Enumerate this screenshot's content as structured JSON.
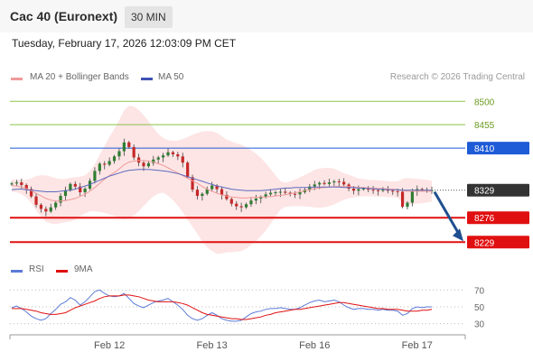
{
  "header": {
    "instrument": "Cac 40 (Euronext)",
    "timeframe": "30 MIN",
    "timestamp": "Tuesday, February 17, 2026 12:03:09 PM CET"
  },
  "legend": {
    "ma20": "MA 20 + Bollinger Bands",
    "ma50": "MA 50",
    "credit": "Research © 2026 Trading Central"
  },
  "rsi_legend": {
    "rsi": "RSI",
    "ma": "9MA"
  },
  "colors": {
    "candle_up": "#2e7d32",
    "candle_down": "#c62828",
    "bollinger_fill": "#fde0e0",
    "ma20": "#ef9a9a",
    "ma50": "#5c6bc0",
    "target_green": "#8bc34a",
    "pivot_blue": "#1e5bd6",
    "support_red": "#e01010",
    "arrow": "#1f4f8f",
    "last_price_bg": "#333333"
  },
  "chart_data": [
    {
      "type": "candlestick",
      "title": "",
      "x_ticks": [
        "Feb 12",
        "Feb 13",
        "Feb 16",
        "Feb 17"
      ],
      "ylim": [
        8200,
        8530
      ],
      "levels": [
        {
          "value": 8500,
          "label": "8500",
          "role": "resistance"
        },
        {
          "value": 8455,
          "label": "8455",
          "role": "resistance"
        },
        {
          "value": 8410,
          "label": "8410",
          "role": "pivot"
        },
        {
          "value": 8276,
          "label": "8276",
          "role": "support"
        },
        {
          "value": 8229,
          "label": "8229",
          "role": "support"
        }
      ],
      "last_price": {
        "value": 8329,
        "label": "8329"
      },
      "projection": {
        "from": 8331,
        "to": 8229,
        "direction": "down"
      },
      "close": [
        8342,
        8344,
        8339,
        8331,
        8317,
        8301,
        8293,
        8288,
        8296,
        8305,
        8318,
        8329,
        8341,
        8336,
        8325,
        8332,
        8347,
        8366,
        8380,
        8378,
        8385,
        8394,
        8404,
        8421,
        8412,
        8392,
        8382,
        8375,
        8381,
        8388,
        8392,
        8396,
        8402,
        8398,
        8394,
        8382,
        8354,
        8330,
        8318,
        8322,
        8331,
        8338,
        8331,
        8320,
        8312,
        8303,
        8298,
        8296,
        8302,
        8309,
        8313,
        8316,
        8321,
        8324,
        8325,
        8326,
        8324,
        8322,
        8321,
        8325,
        8330,
        8336,
        8340,
        8343,
        8341,
        8344,
        8346,
        8345,
        8340,
        8332,
        8328,
        8331,
        8332,
        8330,
        8329,
        8328,
        8330,
        8328,
        8327,
        8326,
        8297,
        8305,
        8327,
        8331,
        8329,
        8329,
        8329
      ],
      "ma20": [
        8338,
        8337,
        8335,
        8332,
        8328,
        8323,
        8318,
        8313,
        8310,
        8308,
        8308,
        8309,
        8311,
        8313,
        8317,
        8321,
        8327,
        8334,
        8342,
        8350,
        8357,
        8363,
        8370,
        8378,
        8383,
        8385,
        8386,
        8386,
        8385,
        8383,
        8380,
        8377,
        8372,
        8367,
        8362,
        8357,
        8352,
        8347,
        8342,
        8336,
        8331,
        8327,
        8323,
        8320,
        8318,
        8316,
        8315,
        8314,
        8314,
        8315,
        8315,
        8316,
        8316,
        8317,
        8318,
        8319,
        8320,
        8322,
        8324,
        8326,
        8328,
        8330,
        8332,
        8333,
        8334,
        8335,
        8336,
        8336,
        8336,
        8336,
        8335,
        8334,
        8334,
        8333,
        8333,
        8332,
        8332,
        8331,
        8331,
        8330,
        8328,
        8327,
        8327,
        8327,
        8327,
        8327,
        8327
      ],
      "ma50": [
        8330,
        8331,
        8331,
        8330,
        8329,
        8328,
        8327,
        8326,
        8326,
        8326,
        8327,
        8328,
        8329,
        8331,
        8334,
        8337,
        8340,
        8344,
        8348,
        8352,
        8356,
        8359,
        8362,
        8365,
        8367,
        8368,
        8369,
        8369,
        8369,
        8368,
        8367,
        8366,
        8365,
        8363,
        8361,
        8358,
        8355,
        8352,
        8349,
        8346,
        8343,
        8340,
        8337,
        8335,
        8333,
        8331,
        8330,
        8329,
        8328,
        8328,
        8328,
        8328,
        8329,
        8330,
        8331,
        8332,
        8333,
        8333,
        8334,
        8334,
        8334,
        8334,
        8335,
        8335,
        8335,
        8335,
        8335,
        8335,
        8334,
        8334,
        8334,
        8333,
        8333,
        8332,
        8332,
        8331,
        8331,
        8330,
        8330,
        8330,
        8329,
        8329,
        8329,
        8329,
        8329,
        8329,
        8329
      ]
    },
    {
      "type": "line",
      "title": "",
      "series": [
        {
          "name": "RSI"
        },
        {
          "name": "9MA"
        }
      ],
      "yticks": [
        70,
        50,
        30
      ],
      "ylim": [
        20,
        80
      ],
      "rsi": [
        49,
        51,
        48,
        44,
        39,
        36,
        34,
        36,
        42,
        47,
        53,
        56,
        61,
        58,
        52,
        56,
        62,
        68,
        70,
        66,
        63,
        62,
        63,
        66,
        60,
        54,
        51,
        49,
        52,
        55,
        57,
        58,
        60,
        56,
        52,
        47,
        40,
        36,
        34,
        36,
        40,
        43,
        40,
        36,
        34,
        33,
        33,
        34,
        38,
        42,
        44,
        45,
        47,
        48,
        48,
        49,
        48,
        47,
        47,
        49,
        52,
        55,
        57,
        58,
        56,
        57,
        58,
        56,
        52,
        49,
        47,
        48,
        48,
        47,
        47,
        46,
        47,
        46,
        46,
        45,
        40,
        42,
        48,
        50,
        49,
        50,
        50
      ],
      "ma9": [
        48,
        48,
        48,
        47,
        46,
        45,
        43,
        42,
        41,
        41,
        42,
        43,
        46,
        49,
        51,
        53,
        55,
        57,
        60,
        62,
        63,
        63,
        63,
        64,
        64,
        63,
        62,
        60,
        58,
        57,
        56,
        56,
        56,
        56,
        55,
        54,
        52,
        49,
        46,
        43,
        41,
        40,
        39,
        38,
        37,
        36,
        36,
        35,
        35,
        36,
        37,
        38,
        40,
        41,
        43,
        44,
        45,
        46,
        47,
        47,
        48,
        49,
        50,
        51,
        52,
        53,
        54,
        55,
        55,
        54,
        53,
        52,
        51,
        50,
        49,
        48,
        48,
        47,
        47,
        47,
        46,
        45,
        45,
        45,
        46,
        46,
        47
      ]
    }
  ]
}
